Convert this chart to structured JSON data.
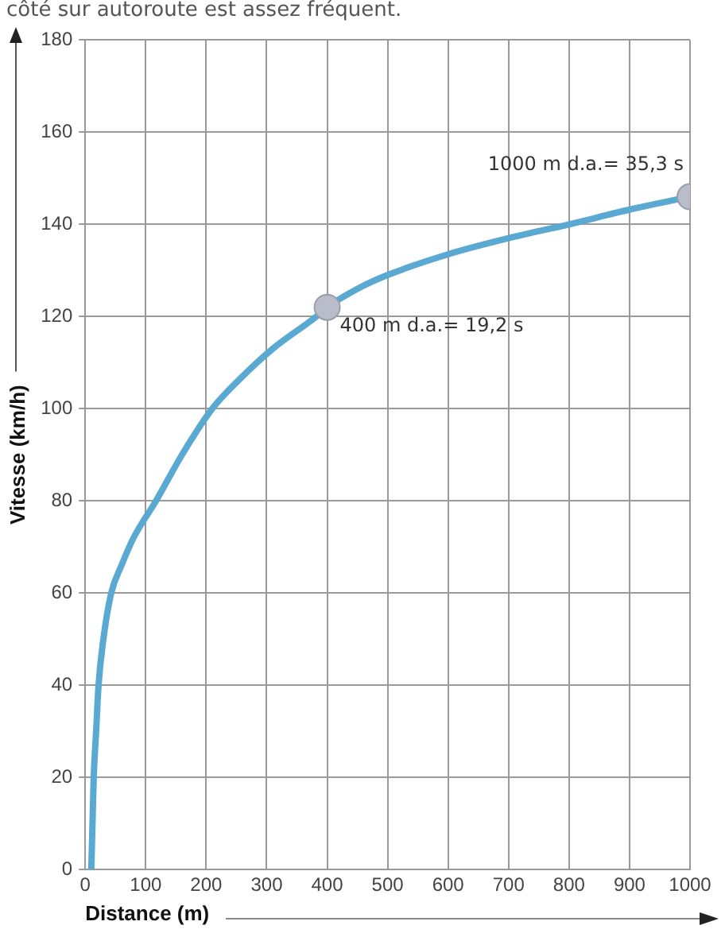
{
  "chart_data": {
    "type": "line",
    "xlabel": "Distance (m)",
    "ylabel": "Vitesse (km/h)",
    "annotations": [
      "côté sur autoroute est assez fréquent.",
      {
        "text": "400 m d.a.= 19,2 s",
        "x": 400,
        "y": 122
      },
      {
        "text": "1000 m d.a.= 35,3 s",
        "x": 1000,
        "y": 146
      }
    ],
    "series": [
      {
        "color": "#5aa9d2",
        "marker": "none",
        "x": [
          10,
          12,
          14,
          18,
          22,
          30,
          43,
          60,
          80,
          117,
          160,
          210,
          260,
          310,
          382,
          400,
          450,
          500,
          600,
          700,
          800,
          900,
          1000
        ],
        "values": [
          0,
          10,
          20,
          30,
          40,
          50,
          60,
          66,
          72,
          80,
          90,
          100,
          107,
          113,
          120,
          122,
          126,
          129,
          133.5,
          137,
          140,
          143.2,
          146
        ]
      },
      {
        "type": "scatter",
        "color": "#b9bcc9",
        "marker": "circle",
        "x": [
          400,
          1000
        ],
        "values": [
          122,
          146
        ]
      }
    ],
    "xlim": [
      0,
      1000
    ],
    "xticks": [
      0,
      100,
      200,
      300,
      400,
      500,
      600,
      700,
      800,
      900,
      1000
    ],
    "ylim": [
      0,
      180
    ],
    "yticks": [
      0,
      20,
      40,
      60,
      80,
      100,
      120,
      140,
      160,
      180
    ],
    "grid": true
  }
}
